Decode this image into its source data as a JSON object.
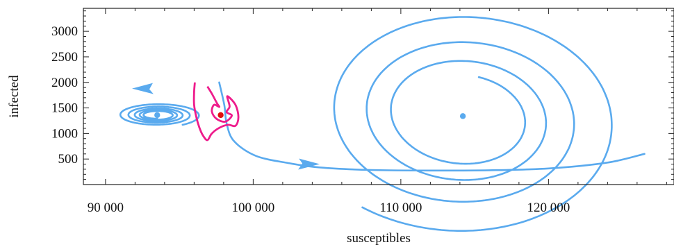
{
  "chart_data": {
    "type": "line",
    "xlabel": "susceptibles",
    "ylabel": "infected",
    "xlim": [
      88500,
      128500
    ],
    "ylim": [
      0,
      3450
    ],
    "x_ticks": [
      {
        "value": 90000,
        "label": "90 000"
      },
      {
        "value": 100000,
        "label": "100 000"
      },
      {
        "value": 110000,
        "label": "110 000"
      },
      {
        "value": 120000,
        "label": "120 000"
      }
    ],
    "y_ticks": [
      {
        "value": 500,
        "label": "500"
      },
      {
        "value": 1000,
        "label": "1000"
      },
      {
        "value": 1500,
        "label": "1500"
      },
      {
        "value": 2000,
        "label": "2000"
      },
      {
        "value": 2500,
        "label": "2500"
      },
      {
        "value": 3000,
        "label": "3000"
      }
    ],
    "x_minor_step": 2000,
    "y_minor_step": 100,
    "grid": false,
    "colors": {
      "orbit": "#5aaaee",
      "contour": "#ee1c8c",
      "saddle_point": "#e01010"
    },
    "equilibria": [
      {
        "x": 93500,
        "y": 1360,
        "color": "#5aaaee"
      },
      {
        "x": 97800,
        "y": 1360,
        "color": "#e01010"
      },
      {
        "x": 114200,
        "y": 1340,
        "color": "#5aaaee"
      }
    ],
    "arrows": [
      {
        "x": 92500,
        "y": 1880,
        "direction": "left"
      },
      {
        "x": 103800,
        "y": 400,
        "direction": "right"
      }
    ],
    "right_spiral": {
      "x": 114200,
      "y": 1340,
      "a": 3950,
      "b0": 820,
      "b_growth": 1.34,
      "turns": 3.55,
      "lean": -400
    },
    "left_spiral": {
      "x": 93500,
      "y": 1360,
      "a0": 190,
      "b0": 70,
      "growth": 1.28,
      "turns": 4.9
    },
    "connection": [
      [
        97700,
        2000
      ],
      [
        98050,
        1550
      ],
      [
        98200,
        1200
      ],
      [
        98700,
        850
      ],
      [
        100200,
        560
      ],
      [
        102400,
        420
      ],
      [
        104500,
        335
      ],
      [
        108000,
        285
      ],
      [
        112000,
        275
      ],
      [
        116000,
        280
      ],
      [
        120000,
        315
      ],
      [
        124000,
        430
      ],
      [
        126500,
        600
      ]
    ],
    "contour": [
      [
        96900,
        1920
      ],
      [
        97200,
        1780
      ],
      [
        97550,
        1590
      ],
      [
        97700,
        1520
      ],
      [
        97350,
        1560
      ],
      [
        97200,
        1430
      ],
      [
        97500,
        1290
      ],
      [
        98100,
        1230
      ],
      [
        98550,
        1350
      ],
      [
        98200,
        1420
      ],
      [
        98400,
        1530
      ],
      [
        98250,
        1730
      ],
      [
        98800,
        1560
      ],
      [
        99000,
        1320
      ],
      [
        98800,
        1150
      ],
      [
        98300,
        1170
      ],
      [
        97700,
        1110
      ],
      [
        97200,
        1000
      ],
      [
        96900,
        870
      ],
      [
        96600,
        960
      ],
      [
        96350,
        1120
      ],
      [
        96150,
        1320
      ],
      [
        96000,
        1560
      ],
      [
        96000,
        1820
      ],
      [
        96050,
        2000
      ]
    ]
  }
}
